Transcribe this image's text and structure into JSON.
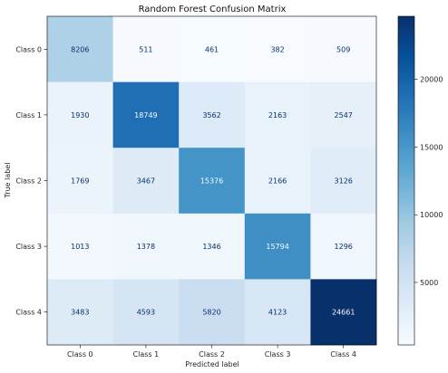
{
  "chart_data": {
    "type": "heatmap",
    "title": "Random Forest Confusion Matrix",
    "xlabel": "Predicted label",
    "ylabel": "True label",
    "x_categories": [
      "Class 0",
      "Class 1",
      "Class 2",
      "Class 3",
      "Class 4"
    ],
    "y_categories": [
      "Class 0",
      "Class 1",
      "Class 2",
      "Class 3",
      "Class 4"
    ],
    "matrix": [
      [
        8206,
        511,
        461,
        382,
        509
      ],
      [
        1930,
        18749,
        3562,
        2163,
        2547
      ],
      [
        1769,
        3467,
        15376,
        2166,
        3126
      ],
      [
        1013,
        1378,
        1346,
        15794,
        1296
      ],
      [
        3483,
        4593,
        5820,
        4123,
        24661
      ]
    ],
    "colormap": "Blues",
    "colorbar": {
      "ticks": [
        "5000",
        "10000",
        "15000",
        "20000"
      ],
      "tick_values": [
        5000,
        10000,
        15000,
        20000
      ],
      "range": [
        382,
        24661
      ]
    },
    "colors": {
      "low": "#f7fbff",
      "high": "#08306b",
      "dark_text": "#08306b",
      "light_text": "#f7fbff"
    }
  }
}
